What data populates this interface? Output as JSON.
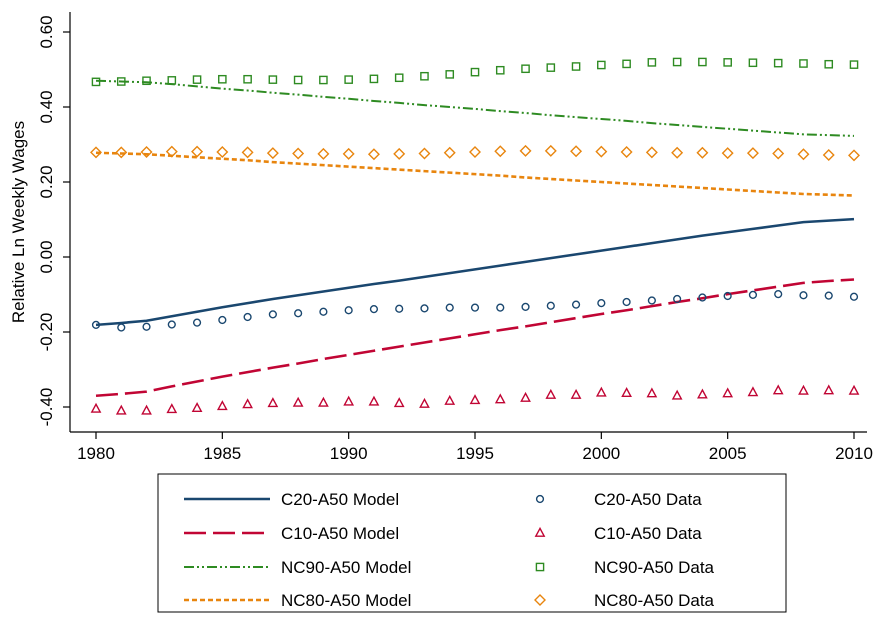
{
  "chart_data": {
    "type": "line",
    "title": "",
    "xlabel": "",
    "ylabel": "Relative Ln Weekly Wages",
    "xlim": [
      1980,
      2010
    ],
    "ylim": [
      -0.45,
      0.65
    ],
    "x_ticks": [
      1980,
      1985,
      1990,
      1995,
      2000,
      2005,
      2010
    ],
    "y_ticks": [
      -0.4,
      -0.2,
      0.0,
      0.2,
      0.4,
      0.6
    ],
    "y_tick_labels": [
      "-0.40",
      "-0.20",
      "0.00",
      "0.20",
      "0.40",
      "0.60"
    ],
    "grid": false,
    "legend_position": "bottom",
    "x": [
      1980,
      1981,
      1982,
      1983,
      1984,
      1985,
      1986,
      1987,
      1988,
      1989,
      1990,
      1991,
      1992,
      1993,
      1994,
      1995,
      1996,
      1997,
      1998,
      1999,
      2000,
      2001,
      2002,
      2003,
      2004,
      2005,
      2006,
      2007,
      2008,
      2009,
      2010
    ],
    "series": [
      {
        "name": "C20-A50 Model",
        "kind": "line",
        "color": "#1a476f",
        "dash": "solid",
        "values": [
          -0.181,
          -0.176,
          -0.17,
          -0.158,
          -0.146,
          -0.134,
          -0.123,
          -0.112,
          -0.102,
          -0.092,
          -0.082,
          -0.072,
          -0.063,
          -0.053,
          -0.043,
          -0.033,
          -0.023,
          -0.013,
          -0.003,
          0.007,
          0.017,
          0.027,
          0.037,
          0.047,
          0.057,
          0.066,
          0.075,
          0.084,
          0.093,
          0.097,
          0.101
        ]
      },
      {
        "name": "C10-A50 Model",
        "kind": "line",
        "color": "#c10534",
        "dash": "long-dash",
        "values": [
          -0.37,
          -0.365,
          -0.359,
          -0.345,
          -0.332,
          -0.319,
          -0.307,
          -0.295,
          -0.284,
          -0.272,
          -0.261,
          -0.25,
          -0.239,
          -0.228,
          -0.217,
          -0.206,
          -0.195,
          -0.185,
          -0.174,
          -0.163,
          -0.152,
          -0.142,
          -0.131,
          -0.12,
          -0.11,
          -0.099,
          -0.089,
          -0.079,
          -0.069,
          -0.064,
          -0.06
        ]
      },
      {
        "name": "NC90-A50 Model",
        "kind": "line",
        "color": "#2e8b22",
        "dash": "dash-dot-dot",
        "values": [
          0.47,
          0.468,
          0.466,
          0.461,
          0.455,
          0.449,
          0.444,
          0.438,
          0.433,
          0.427,
          0.422,
          0.416,
          0.411,
          0.405,
          0.4,
          0.395,
          0.389,
          0.384,
          0.378,
          0.373,
          0.368,
          0.363,
          0.357,
          0.352,
          0.347,
          0.342,
          0.337,
          0.332,
          0.327,
          0.325,
          0.323
        ]
      },
      {
        "name": "NC80-A50 Model",
        "kind": "line",
        "color": "#e8850e",
        "dash": "short-dash",
        "values": [
          0.278,
          0.276,
          0.274,
          0.27,
          0.266,
          0.262,
          0.258,
          0.253,
          0.249,
          0.245,
          0.241,
          0.237,
          0.233,
          0.229,
          0.225,
          0.221,
          0.217,
          0.212,
          0.208,
          0.204,
          0.2,
          0.196,
          0.192,
          0.188,
          0.184,
          0.18,
          0.176,
          0.172,
          0.168,
          0.166,
          0.164
        ]
      },
      {
        "name": "C20-A50 Data",
        "kind": "marker",
        "marker": "circle",
        "color": "#1a476f",
        "values": [
          -0.181,
          -0.188,
          -0.186,
          -0.18,
          -0.175,
          -0.168,
          -0.16,
          -0.153,
          -0.15,
          -0.146,
          -0.142,
          -0.139,
          -0.138,
          -0.137,
          -0.135,
          -0.135,
          -0.135,
          -0.133,
          -0.13,
          -0.127,
          -0.123,
          -0.12,
          -0.116,
          -0.112,
          -0.108,
          -0.104,
          -0.101,
          -0.099,
          -0.102,
          -0.103,
          -0.106
        ]
      },
      {
        "name": "C10-A50 Data",
        "kind": "marker",
        "marker": "triangle",
        "color": "#c10534",
        "values": [
          -0.405,
          -0.41,
          -0.41,
          -0.406,
          -0.403,
          -0.398,
          -0.393,
          -0.39,
          -0.389,
          -0.389,
          -0.386,
          -0.386,
          -0.39,
          -0.392,
          -0.384,
          -0.382,
          -0.38,
          -0.376,
          -0.368,
          -0.368,
          -0.362,
          -0.363,
          -0.364,
          -0.37,
          -0.367,
          -0.364,
          -0.361,
          -0.356,
          -0.357,
          -0.356,
          -0.357
        ]
      },
      {
        "name": "NC90-A50 Data",
        "kind": "marker",
        "marker": "square",
        "color": "#2e8b22",
        "values": [
          0.467,
          0.468,
          0.47,
          0.471,
          0.473,
          0.474,
          0.474,
          0.473,
          0.472,
          0.472,
          0.473,
          0.475,
          0.478,
          0.482,
          0.487,
          0.493,
          0.498,
          0.502,
          0.505,
          0.508,
          0.512,
          0.515,
          0.519,
          0.52,
          0.52,
          0.519,
          0.518,
          0.517,
          0.516,
          0.514,
          0.513
        ]
      },
      {
        "name": "NC80-A50 Data",
        "kind": "marker",
        "marker": "diamond",
        "color": "#e8850e",
        "values": [
          0.279,
          0.279,
          0.28,
          0.281,
          0.281,
          0.28,
          0.279,
          0.277,
          0.276,
          0.275,
          0.275,
          0.274,
          0.275,
          0.276,
          0.278,
          0.28,
          0.282,
          0.283,
          0.283,
          0.282,
          0.281,
          0.28,
          0.279,
          0.278,
          0.278,
          0.277,
          0.277,
          0.276,
          0.274,
          0.272,
          0.271
        ]
      }
    ]
  }
}
